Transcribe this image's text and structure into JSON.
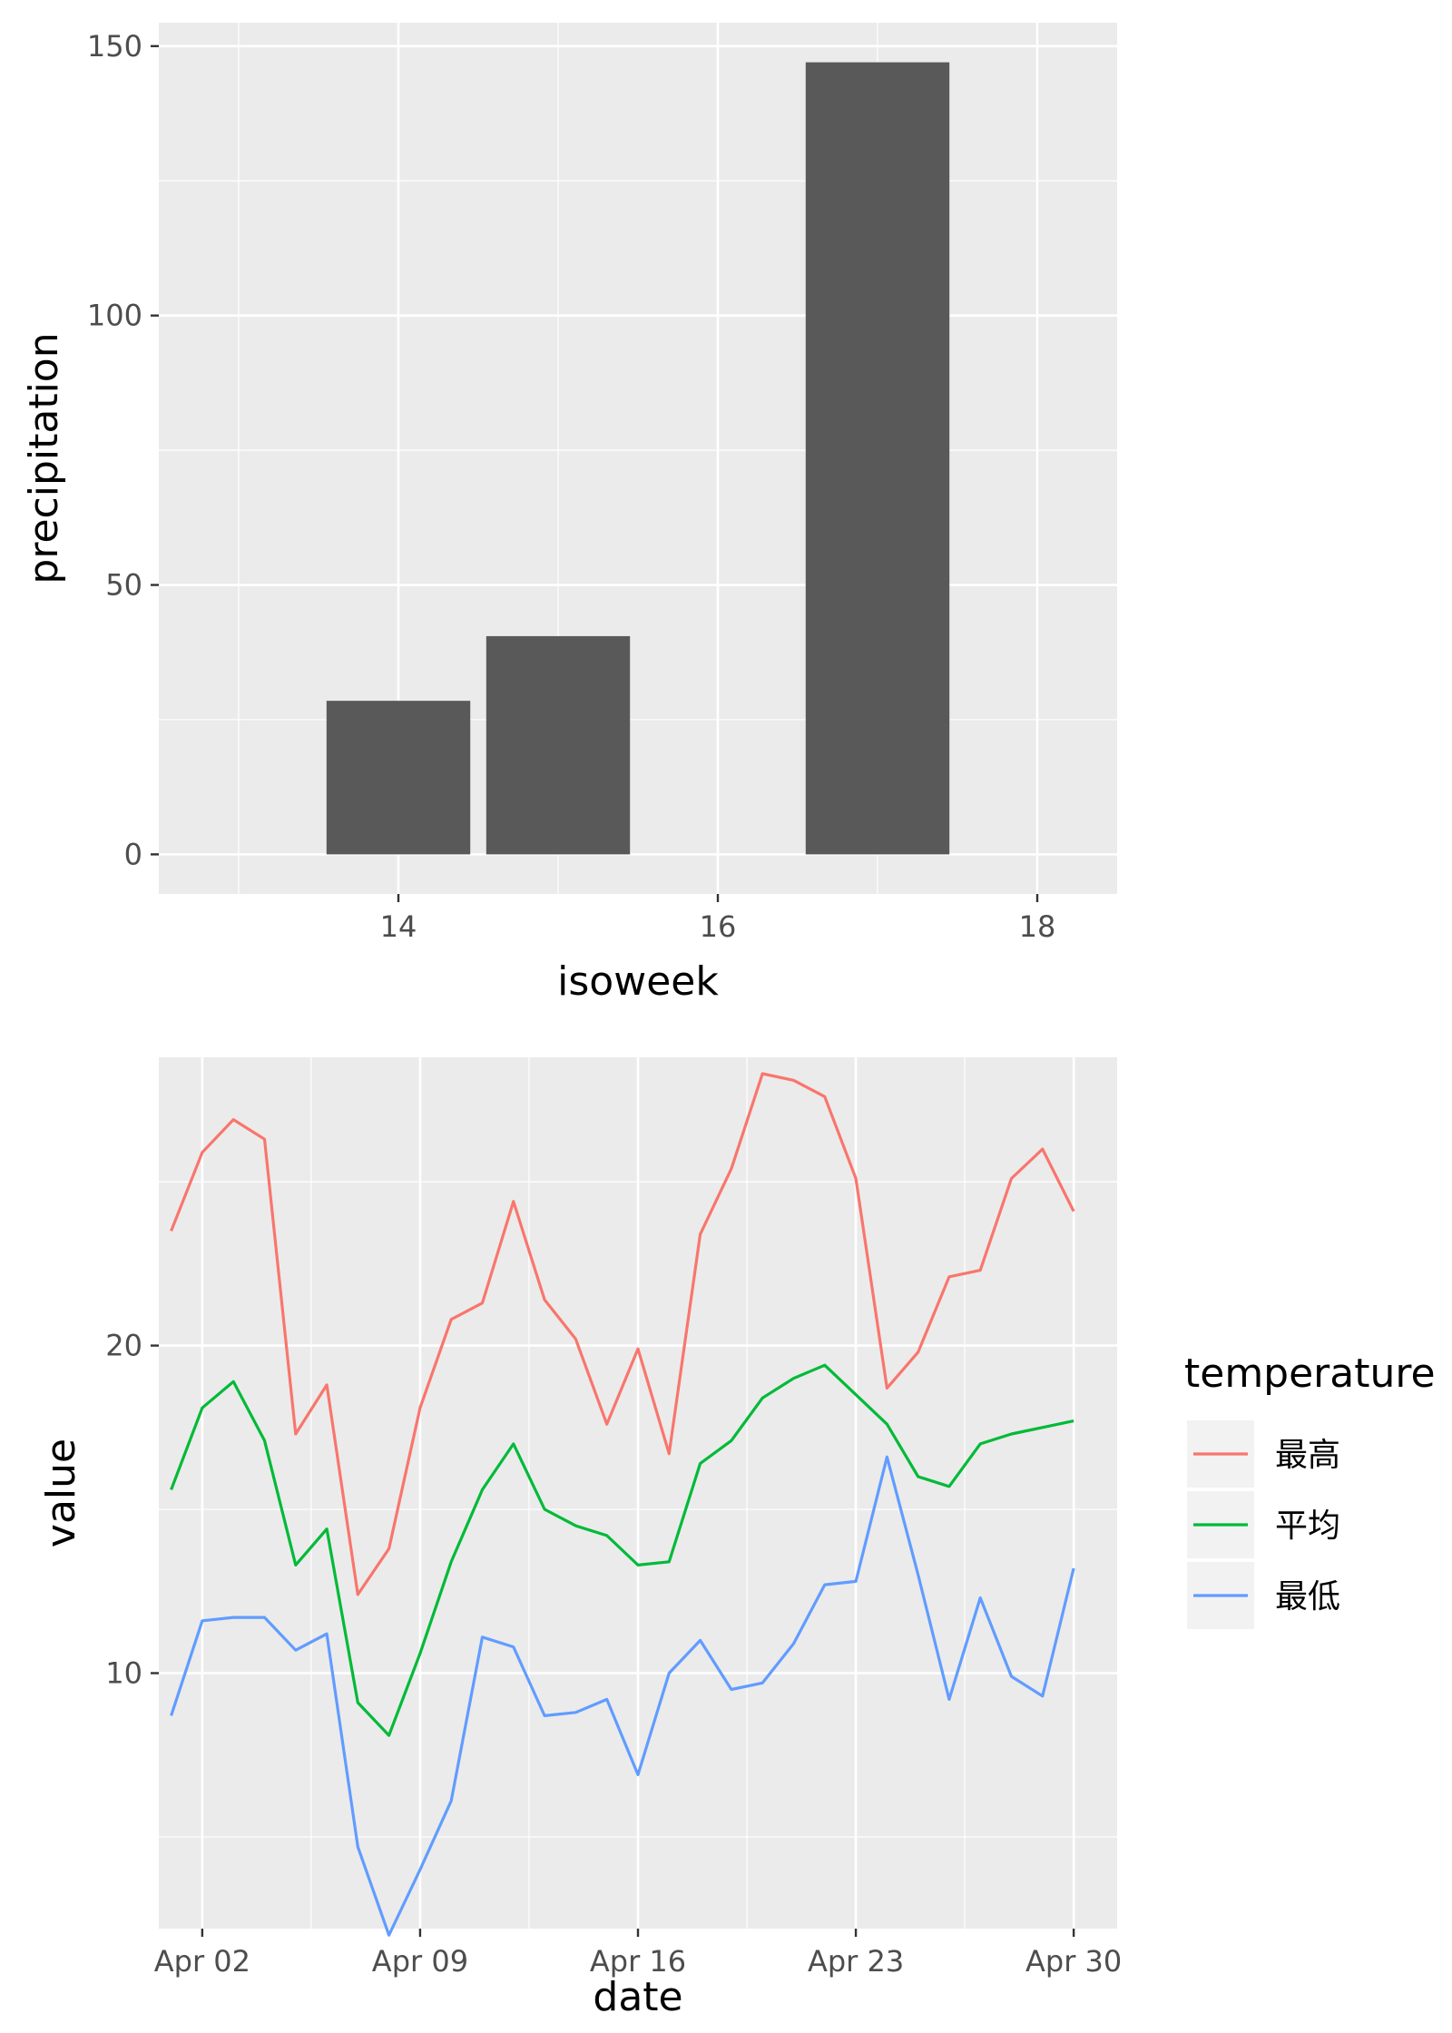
{
  "chart_data": [
    {
      "type": "bar",
      "xlabel": "isoweek",
      "ylabel": "precipitation",
      "x": [
        14,
        15,
        17
      ],
      "values": [
        28.5,
        40.5,
        147
      ],
      "xlim": [
        12.5,
        18.5
      ],
      "ylim": [
        -7.35,
        154.35
      ],
      "xticks": [
        14,
        16,
        18
      ],
      "xticks_minor": [
        13,
        15,
        17
      ],
      "yticks": [
        0,
        50,
        100,
        150
      ],
      "yticks_minor": [
        25,
        75,
        125
      ],
      "bar_color": "#595959",
      "panel_color": "#ebebeb",
      "grid": true
    },
    {
      "type": "line",
      "xlabel": "date",
      "ylabel": "value",
      "legend_title": "temperature",
      "legend_position": "right",
      "x": [
        "2024-04-01",
        "2024-04-02",
        "2024-04-03",
        "2024-04-04",
        "2024-04-05",
        "2024-04-06",
        "2024-04-07",
        "2024-04-08",
        "2024-04-09",
        "2024-04-10",
        "2024-04-11",
        "2024-04-12",
        "2024-04-13",
        "2024-04-14",
        "2024-04-15",
        "2024-04-16",
        "2024-04-17",
        "2024-04-18",
        "2024-04-19",
        "2024-04-20",
        "2024-04-21",
        "2024-04-22",
        "2024-04-23",
        "2024-04-24",
        "2024-04-25",
        "2024-04-26",
        "2024-04-27",
        "2024-04-28",
        "2024-04-29",
        "2024-04-30"
      ],
      "xlim": [
        "2024-03-31T14:30",
        "2024-05-01T09:30"
      ],
      "xticks": [
        "2024-04-02",
        "2024-04-09",
        "2024-04-16",
        "2024-04-23",
        "2024-04-30"
      ],
      "xtick_labels": [
        "Apr 02",
        "Apr 09",
        "Apr 16",
        "Apr 23",
        "Apr 30"
      ],
      "xticks_minor": [
        "2024-04-05T12:00",
        "2024-04-12T12:00",
        "2024-04-19T12:00",
        "2024-04-26T12:00"
      ],
      "ylim": [
        2.2,
        28.8
      ],
      "yticks": [
        10,
        20
      ],
      "yticks_minor": [
        5,
        15,
        25
      ],
      "series": [
        {
          "name": "最高",
          "color": "#f8766d",
          "values": [
            23.5,
            25.9,
            26.9,
            26.3,
            17.3,
            18.8,
            12.4,
            13.8,
            18.1,
            20.8,
            21.3,
            24.4,
            21.4,
            20.2,
            17.6,
            19.9,
            16.7,
            23.4,
            25.4,
            28.3,
            28.1,
            27.6,
            25.1,
            18.7,
            19.8,
            22.1,
            22.3,
            25.1,
            26.0,
            24.1
          ]
        },
        {
          "name": "平均",
          "color": "#00ba38",
          "values": [
            15.6,
            18.1,
            18.9,
            17.1,
            13.3,
            14.4,
            9.1,
            8.1,
            10.6,
            13.4,
            15.6,
            17.0,
            15.0,
            14.5,
            14.2,
            13.3,
            13.4,
            16.4,
            17.1,
            18.4,
            19.0,
            19.4,
            18.5,
            17.6,
            16.0,
            15.7,
            17.0,
            17.3,
            17.5,
            17.7
          ]
        },
        {
          "name": "最低",
          "color": "#619cff",
          "values": [
            8.7,
            11.6,
            11.7,
            11.7,
            10.7,
            11.2,
            4.7,
            2.0,
            4.0,
            6.1,
            11.1,
            10.8,
            8.7,
            8.8,
            9.2,
            6.9,
            10.0,
            11.0,
            9.5,
            9.7,
            10.9,
            12.7,
            12.8,
            16.6,
            13.0,
            9.2,
            12.3,
            9.9,
            9.3,
            13.2
          ]
        }
      ]
    }
  ]
}
